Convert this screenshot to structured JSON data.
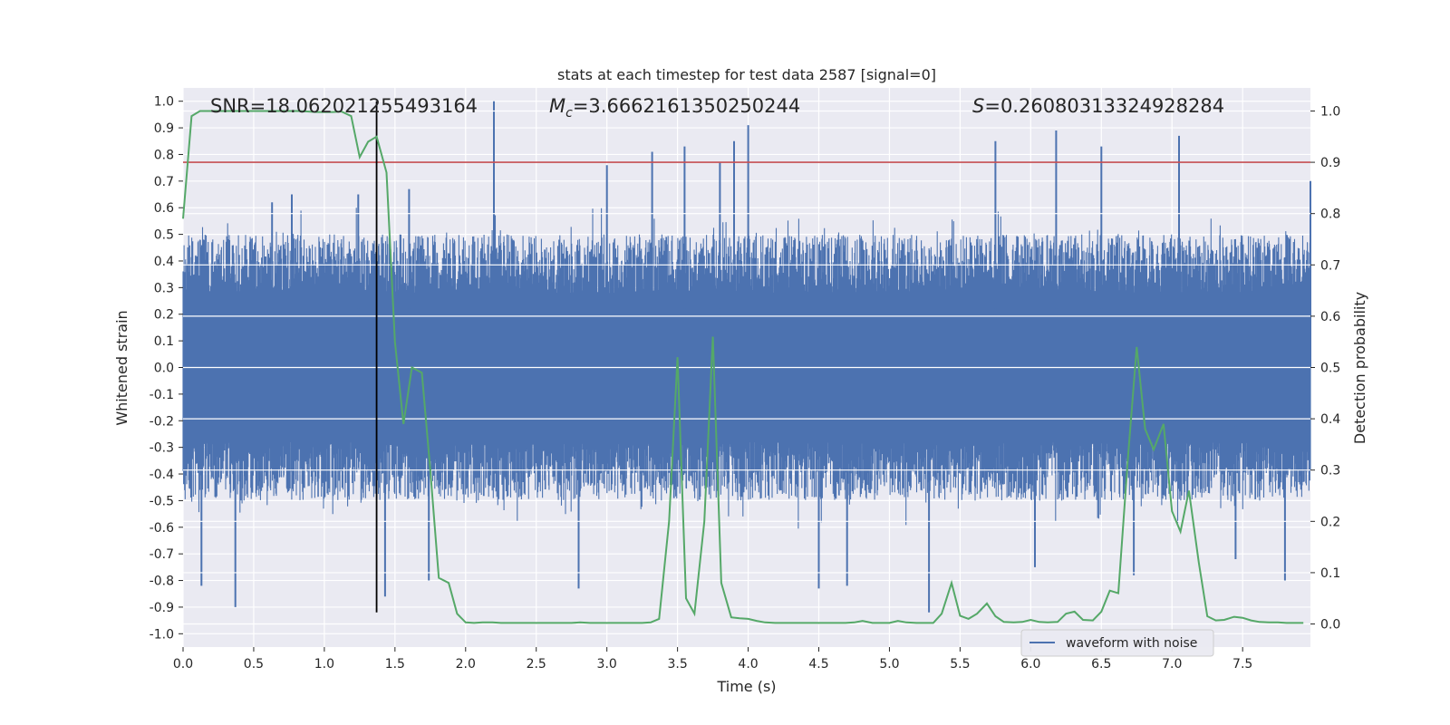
{
  "chart_data": {
    "type": "line",
    "title": "stats at each timestep for test data 2587 [signal=0]",
    "xlabel": "Time (s)",
    "ylabel_left": "Whitened strain",
    "ylabel_right": "Detection probability",
    "xlim": [
      0.0,
      7.98
    ],
    "ylim_left": [
      -1.05,
      1.05
    ],
    "ylim_right": [
      -0.045,
      1.045
    ],
    "x_ticks": [
      0.0,
      0.5,
      1.0,
      1.5,
      2.0,
      2.5,
      3.0,
      3.5,
      4.0,
      4.5,
      5.0,
      5.5,
      6.0,
      6.5,
      7.0,
      7.5
    ],
    "x_tick_labels": [
      "0.0",
      "0.5",
      "1.0",
      "1.5",
      "2.0",
      "2.5",
      "3.0",
      "3.5",
      "4.0",
      "4.5",
      "5.0",
      "5.5",
      "6.0",
      "6.5",
      "7.0",
      "7.5"
    ],
    "y_left_ticks": [
      1.0,
      0.9,
      0.8,
      0.7,
      0.6,
      0.5,
      0.4,
      0.3,
      0.2,
      0.1,
      0.0,
      -0.1,
      -0.2,
      -0.3,
      -0.4,
      -0.5,
      -0.6,
      -0.7,
      -0.8,
      -0.9,
      -1.0
    ],
    "y_left_tick_labels": [
      "1.0",
      "0.9",
      "0.8",
      "0.7",
      "0.6",
      "0.5",
      "0.4",
      "0.3",
      "0.2",
      "0.1",
      "0.0",
      "-0.1",
      "-0.2",
      "-0.3",
      "-0.4",
      "-0.5",
      "-0.6",
      "-0.7",
      "-0.8",
      "-0.9",
      "-1.0"
    ],
    "y_right_ticks": [
      1.0,
      0.9,
      0.8,
      0.7,
      0.6,
      0.5,
      0.4,
      0.3,
      0.2,
      0.1,
      0.0
    ],
    "y_right_tick_labels": [
      "1.0",
      "0.9",
      "0.8",
      "0.7",
      "0.6",
      "0.5",
      "0.4",
      "0.3",
      "0.2",
      "0.1",
      "0.0"
    ],
    "annotations": {
      "snr": "SNR=18.062021255493164",
      "mc_value": "=3.6662161350250244",
      "s_value": "=0.26080313324928284"
    },
    "threshold_right": 0.9,
    "marker_time": 1.37,
    "grid": true,
    "legend_position": "lower-right",
    "series": [
      {
        "name": "waveform with noise",
        "axis": "left",
        "color": "#4c72b0",
        "description_samples": "dense noise trace, envelope ~ +/-0.55 with spikes",
        "peaks": [
          [
            0.37,
            -0.9
          ],
          [
            0.13,
            -0.82
          ],
          [
            0.63,
            0.62
          ],
          [
            0.77,
            0.65
          ],
          [
            1.24,
            0.65
          ],
          [
            1.43,
            -0.86
          ],
          [
            1.6,
            0.67
          ],
          [
            1.74,
            -0.8
          ],
          [
            2.2,
            1.0
          ],
          [
            2.8,
            -0.83
          ],
          [
            3.0,
            0.76
          ],
          [
            3.32,
            0.81
          ],
          [
            3.55,
            0.83
          ],
          [
            3.8,
            0.77
          ],
          [
            3.9,
            0.85
          ],
          [
            4.0,
            0.91
          ],
          [
            4.5,
            -0.83
          ],
          [
            4.7,
            -0.82
          ],
          [
            5.28,
            -0.92
          ],
          [
            5.75,
            0.85
          ],
          [
            6.03,
            -0.75
          ],
          [
            6.18,
            0.89
          ],
          [
            6.5,
            0.83
          ],
          [
            6.73,
            -0.78
          ],
          [
            7.05,
            0.87
          ],
          [
            7.45,
            -0.72
          ],
          [
            7.8,
            -0.8
          ],
          [
            7.98,
            0.7
          ]
        ]
      },
      {
        "name": "",
        "axis": "right",
        "color": "#55a868",
        "x": [
          0.0,
          0.06,
          0.12,
          0.18,
          0.25,
          0.31,
          0.37,
          0.44,
          0.5,
          0.56,
          0.63,
          0.69,
          0.75,
          0.81,
          0.88,
          0.94,
          1.0,
          1.06,
          1.12,
          1.19,
          1.25,
          1.31,
          1.37,
          1.44,
          1.5,
          1.56,
          1.62,
          1.69,
          1.75,
          1.81,
          1.88,
          1.94,
          2.0,
          2.06,
          2.12,
          2.19,
          2.25,
          2.31,
          2.37,
          2.44,
          2.5,
          2.56,
          2.62,
          2.69,
          2.75,
          2.81,
          2.88,
          2.94,
          3.0,
          3.06,
          3.12,
          3.19,
          3.25,
          3.31,
          3.37,
          3.44,
          3.5,
          3.56,
          3.62,
          3.69,
          3.75,
          3.81,
          3.88,
          3.94,
          4.0,
          4.06,
          4.12,
          4.19,
          4.25,
          4.31,
          4.37,
          4.44,
          4.5,
          4.56,
          4.62,
          4.69,
          4.75,
          4.81,
          4.88,
          4.94,
          5.0,
          5.06,
          5.12,
          5.19,
          5.25,
          5.31,
          5.37,
          5.44,
          5.5,
          5.56,
          5.62,
          5.69,
          5.75,
          5.81,
          5.88,
          5.94,
          6.0,
          6.06,
          6.12,
          6.19,
          6.25,
          6.31,
          6.37,
          6.44,
          6.5,
          6.56,
          6.62,
          6.69,
          6.75,
          6.81,
          6.87,
          6.94,
          7.0,
          7.06,
          7.12,
          7.19,
          7.25,
          7.31,
          7.37,
          7.44,
          7.5,
          7.56,
          7.62,
          7.69,
          7.75,
          7.81,
          7.87,
          7.93
        ],
        "values": [
          0.79,
          0.99,
          1.0,
          1.0,
          1.0,
          1.0,
          1.0,
          1.0,
          1.0,
          1.0,
          1.0,
          1.0,
          1.0,
          1.0,
          0.999,
          0.998,
          0.998,
          0.998,
          0.999,
          0.99,
          0.91,
          0.94,
          0.95,
          0.88,
          0.55,
          0.39,
          0.5,
          0.49,
          0.3,
          0.09,
          0.08,
          0.02,
          0.003,
          0.002,
          0.003,
          0.003,
          0.002,
          0.002,
          0.002,
          0.002,
          0.002,
          0.002,
          0.002,
          0.002,
          0.002,
          0.003,
          0.002,
          0.002,
          0.002,
          0.002,
          0.002,
          0.002,
          0.002,
          0.003,
          0.01,
          0.2,
          0.52,
          0.05,
          0.02,
          0.2,
          0.56,
          0.08,
          0.013,
          0.011,
          0.01,
          0.006,
          0.003,
          0.002,
          0.002,
          0.002,
          0.002,
          0.002,
          0.002,
          0.002,
          0.002,
          0.002,
          0.003,
          0.006,
          0.002,
          0.002,
          0.002,
          0.006,
          0.003,
          0.002,
          0.002,
          0.002,
          0.02,
          0.08,
          0.016,
          0.01,
          0.02,
          0.04,
          0.015,
          0.004,
          0.003,
          0.004,
          0.008,
          0.004,
          0.003,
          0.004,
          0.02,
          0.024,
          0.008,
          0.007,
          0.024,
          0.065,
          0.06,
          0.33,
          0.54,
          0.38,
          0.34,
          0.39,
          0.22,
          0.18,
          0.26,
          0.12,
          0.015,
          0.007,
          0.008,
          0.014,
          0.012,
          0.007,
          0.004,
          0.003,
          0.003,
          0.002,
          0.002,
          0.002
        ]
      }
    ]
  },
  "legend": {
    "label": "waveform with noise"
  },
  "colors": {
    "plot_background": "#eaeaf2",
    "grid": "#ffffff",
    "waveform": "#4c72b0",
    "probability": "#55a868",
    "threshold": "#c44e52",
    "marker": "#000000"
  }
}
